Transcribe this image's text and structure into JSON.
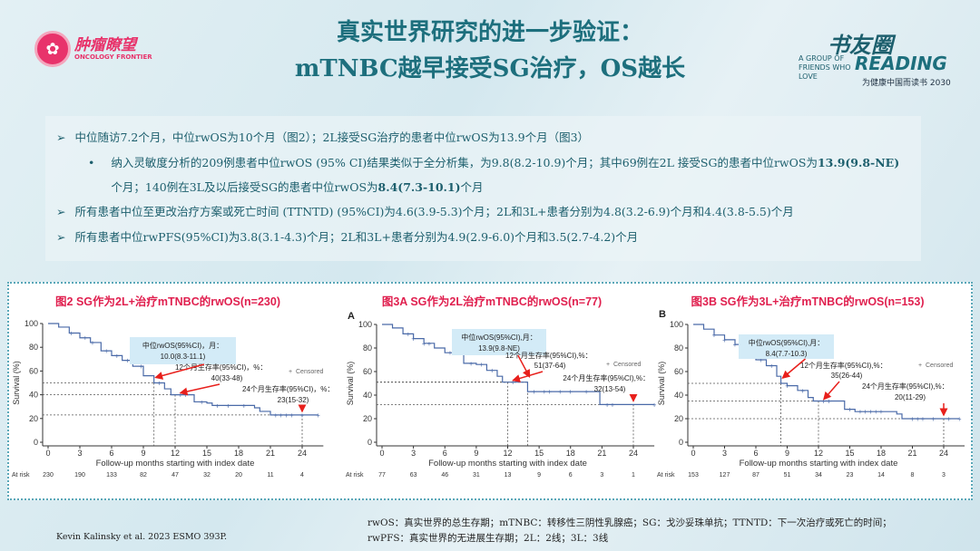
{
  "logo": {
    "cn": "肿瘤瞭望",
    "en": "ONCOLOGY FRONTIER"
  },
  "title": {
    "line1": "真实世界研究的进一步验证：",
    "line2": "mTNBC越早接受SG治疗，OS越长"
  },
  "reading_logo": {
    "cn": "书友圈",
    "en": "READING",
    "tag": "A GROUP OF FRIENDS WHO LOVE",
    "slogan": "为健康中国而读书 2030"
  },
  "bullets": [
    {
      "level": 1,
      "icon": "chevron-right",
      "text": "中位随访7.2个月，中位rwOS为10个月（图2）；2L接受SG治疗的患者中位rwOS为13.9个月（图3）"
    },
    {
      "level": 2,
      "icon": "dot",
      "parts": [
        "纳入灵敏度分析的209例患者中位rwOS (95% CI)结果类似于全分析集，为9.8(8.2-10.9)个月；其中69例在2L 接受SG的患者中位rwOS为",
        "13.9(9.8-NE)",
        "个月；140例在3L及以后接受SG的患者中位rwOS为",
        "8.4(7.3-10.1)",
        "个月"
      ]
    },
    {
      "level": 1,
      "icon": "chevron-right",
      "text": "所有患者中位至更改治疗方案或死亡时间 (TTNTD) (95%CI)为4.6(3.9-5.3)个月；2L和3L+患者分别为4.8(3.2-6.9)个月和4.4(3.8-5.5)个月"
    },
    {
      "level": 1,
      "icon": "chevron-right",
      "text": "所有患者中位rwPFS(95%CI)为3.8(3.1-4.3)个月；2L和3L+患者分别为4.9(2.9-6.0)个月和3.5(2.7-4.2)个月"
    }
  ],
  "chart_data": [
    {
      "type": "line",
      "title": "图2 SG作为2L+治疗mTNBC的rwOS(n=230)",
      "panel_letter": "",
      "xlabel": "Follow-up months starting with index date",
      "ylabel": "Survival (%)",
      "xticks": [
        0,
        3,
        6,
        9,
        12,
        15,
        18,
        21,
        24
      ],
      "yticks": [
        0,
        20,
        40,
        60,
        80,
        100
      ],
      "xlim": [
        0,
        26
      ],
      "ylim": [
        0,
        100
      ],
      "at_risk_label": "At risk",
      "at_risk": [
        230,
        190,
        133,
        82,
        47,
        32,
        20,
        11,
        4
      ],
      "legend": "Censored",
      "curve": [
        [
          0,
          100
        ],
        [
          1,
          97
        ],
        [
          2,
          92
        ],
        [
          3,
          88
        ],
        [
          4,
          84
        ],
        [
          5,
          77
        ],
        [
          6,
          73
        ],
        [
          7,
          69
        ],
        [
          8,
          64
        ],
        [
          9,
          56
        ],
        [
          10,
          50
        ],
        [
          11,
          45
        ],
        [
          11.6,
          40
        ],
        [
          13.8,
          40
        ],
        [
          13.8,
          34
        ],
        [
          15,
          33
        ],
        [
          15.5,
          31
        ],
        [
          18,
          31
        ],
        [
          19.5,
          29
        ],
        [
          20,
          26
        ],
        [
          21,
          23
        ],
        [
          25.5,
          23
        ]
      ],
      "censored": [
        2.2,
        3.5,
        4.2,
        5.5,
        6.5,
        7.5,
        8.8,
        10.5,
        12.5,
        13,
        14.5,
        16,
        17,
        18.5,
        21.5,
        22,
        22.5,
        23,
        24,
        25.5
      ],
      "median": {
        "x": 10.0,
        "y": 50,
        "label": "中位rwOS(95%CI)，月：",
        "value": "10.0(8.3-11.1)"
      },
      "m12": {
        "x": 12,
        "y": 40,
        "label": "12个月生存率(95%CI)，%：",
        "value": "40(33-48)"
      },
      "m24": {
        "x": 24,
        "y": 23,
        "label": "24个月生存率(95%CI)，%：",
        "value": "23(15-32)"
      }
    },
    {
      "type": "line",
      "title": "图3A SG作为2L治疗mTNBC的rwOS(n=77)",
      "panel_letter": "A",
      "xlabel": "Follow-up months starting with index date",
      "ylabel": "Survival (%)",
      "xticks": [
        0,
        3,
        6,
        9,
        12,
        15,
        18,
        21,
        24
      ],
      "yticks": [
        0,
        20,
        40,
        60,
        80,
        100
      ],
      "xlim": [
        0,
        26
      ],
      "ylim": [
        0,
        100
      ],
      "at_risk_label": "At risk",
      "at_risk": [
        77,
        63,
        46,
        31,
        13,
        9,
        6,
        3,
        1
      ],
      "legend": "Censored",
      "curve": [
        [
          0,
          100
        ],
        [
          1,
          97
        ],
        [
          2,
          92
        ],
        [
          3,
          88
        ],
        [
          4,
          84
        ],
        [
          5,
          80
        ],
        [
          6,
          76
        ],
        [
          7.3,
          76
        ],
        [
          7.8,
          67
        ],
        [
          9,
          66
        ],
        [
          10,
          61
        ],
        [
          11,
          56
        ],
        [
          11.5,
          51
        ],
        [
          13.9,
          51
        ],
        [
          13.9,
          43
        ],
        [
          20.8,
          43
        ],
        [
          20.8,
          32
        ],
        [
          26,
          32
        ]
      ],
      "censored": [
        2.5,
        3,
        4,
        4.5,
        6.5,
        7.5,
        8.5,
        9.5,
        10.5,
        12.5,
        14.5,
        15.5,
        16,
        17,
        18,
        19.5,
        21.5,
        22,
        26
      ],
      "median": {
        "x": 13.9,
        "y": 51,
        "label": "中位rwOS(95%CI),月：",
        "value": "13.9(9.8-NE)"
      },
      "m12": {
        "x": 12,
        "y": 51,
        "label": "12个月生存率(95%CI),%：",
        "value": "51(37-64)"
      },
      "m24": {
        "x": 24,
        "y": 32,
        "label": "24个月生存率(95%CI),%：",
        "value": "32(13-54)"
      }
    },
    {
      "type": "line",
      "title": "图3B SG作为3L+治疗mTNBC的rwOS(n=153)",
      "panel_letter": "B",
      "xlabel": "Follow-up months starting with index date",
      "ylabel": "Survival (%)",
      "xticks": [
        0,
        3,
        6,
        9,
        12,
        15,
        18,
        21,
        24
      ],
      "yticks": [
        0,
        20,
        40,
        60,
        80,
        100
      ],
      "xlim": [
        0,
        26
      ],
      "ylim": [
        0,
        100
      ],
      "at_risk_label": "At risk",
      "at_risk": [
        153,
        127,
        87,
        51,
        34,
        23,
        14,
        8,
        3
      ],
      "legend": "Censored",
      "curve": [
        [
          0,
          100
        ],
        [
          1,
          96
        ],
        [
          2,
          91
        ],
        [
          3,
          87
        ],
        [
          4,
          83
        ],
        [
          5,
          76
        ],
        [
          6,
          70
        ],
        [
          7,
          65
        ],
        [
          8,
          56
        ],
        [
          8.4,
          50
        ],
        [
          9,
          48
        ],
        [
          10,
          44
        ],
        [
          11,
          38
        ],
        [
          11.5,
          35
        ],
        [
          14,
          35
        ],
        [
          14.5,
          28
        ],
        [
          15.5,
          26
        ],
        [
          18.5,
          26
        ],
        [
          19.5,
          24
        ],
        [
          20,
          20
        ],
        [
          25.5,
          20
        ]
      ],
      "censored": [
        2,
        3,
        4,
        5.5,
        6.5,
        7.5,
        9,
        10.5,
        12.5,
        13,
        15,
        16,
        16.5,
        17,
        17.5,
        18,
        21,
        21.5,
        22,
        23,
        24.5,
        25.5
      ],
      "median": {
        "x": 8.4,
        "y": 50,
        "label": "中位rwOS(95%CI),月：",
        "value": "8.4(7.7-10.3)"
      },
      "m12": {
        "x": 12,
        "y": 35,
        "label": "12个月生存率(95%CI),%：",
        "value": "35(26-44)"
      },
      "m24": {
        "x": 24,
        "y": 20,
        "label": "24个月生存率(95%CI),%：",
        "value": "20(11-29)"
      }
    }
  ],
  "footer": {
    "citation": "Kevin Kalinsky et al. 2023 ESMO 393P.",
    "abbr1": "rwOS：真实世界的总生存期；mTNBC：转移性三阴性乳腺癌；SG：戈沙妥珠单抗；TTNTD：下一次治疗或死亡的时间；",
    "abbr2": "rwPFS：真实世界的无进展生存期；2L：2线；3L：3线"
  },
  "colors": {
    "title": "#1d6f7d",
    "chart_title": "#e0204f",
    "curve": "#4a6aa8",
    "arrow": "#e8201c",
    "annot_box": "#d3ebf7"
  }
}
